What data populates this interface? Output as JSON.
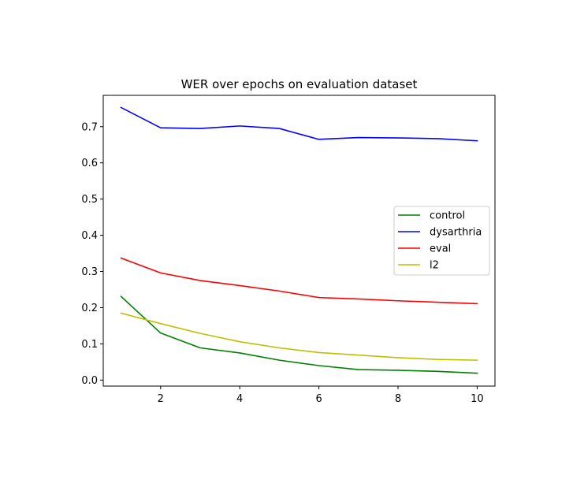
{
  "chart_data": {
    "type": "line",
    "title": "WER over epochs on evaluation dataset",
    "xlabel": "",
    "ylabel": "",
    "x": [
      1,
      2,
      3,
      4,
      5,
      6,
      7,
      8,
      9,
      10
    ],
    "xlim": [
      0.55,
      10.45
    ],
    "ylim": [
      -0.0166,
      0.7866
    ],
    "xticks": [
      2,
      4,
      6,
      8,
      10
    ],
    "yticks": [
      0.0,
      0.1,
      0.2,
      0.3,
      0.4,
      0.5,
      0.6,
      0.7
    ],
    "ytick_labels": [
      "0.0",
      "0.1",
      "0.2",
      "0.3",
      "0.4",
      "0.5",
      "0.6",
      "0.7"
    ],
    "grid": false,
    "legend_position": "center-right",
    "series": [
      {
        "name": "control",
        "color": "#008000",
        "values": [
          0.231,
          0.13,
          0.089,
          0.075,
          0.055,
          0.04,
          0.029,
          0.027,
          0.024,
          0.019
        ]
      },
      {
        "name": "dysarthria",
        "color": "#0000ff",
        "values": [
          0.753,
          0.697,
          0.695,
          0.702,
          0.695,
          0.665,
          0.67,
          0.669,
          0.667,
          0.661
        ]
      },
      {
        "name": "eval",
        "color": "#ff0000",
        "values": [
          0.337,
          0.296,
          0.275,
          0.261,
          0.246,
          0.228,
          0.224,
          0.219,
          0.215,
          0.211
        ]
      },
      {
        "name": "l2",
        "color": "#bfbf00",
        "values": [
          0.185,
          0.156,
          0.129,
          0.106,
          0.089,
          0.076,
          0.069,
          0.062,
          0.057,
          0.055
        ]
      }
    ]
  }
}
